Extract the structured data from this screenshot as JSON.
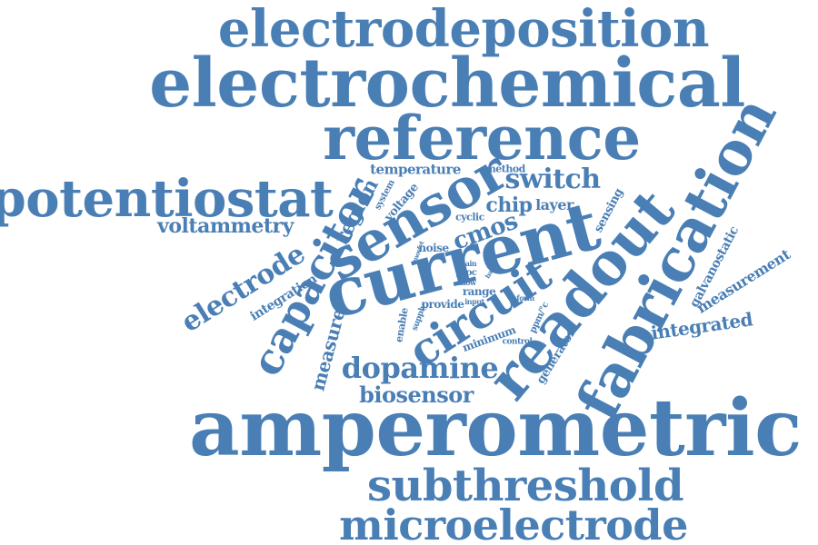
{
  "theme": {
    "word_color": "#4a7fb5",
    "background": "#ffffff"
  },
  "words": [
    "electrodeposition",
    "electrochemical",
    "reference",
    "potentiostat",
    "sensor",
    "current",
    "readout",
    "fabrication",
    "capacitor",
    "circuit",
    "amperometric",
    "subthreshold",
    "microelectrode",
    "dopamine",
    "biosensor",
    "electrode",
    "voltammetry",
    "switch",
    "cmos",
    "chip",
    "layer",
    "temperature",
    "method",
    "region",
    "system",
    "voltage",
    "cyclic",
    "sensing",
    "measure",
    "integration",
    "integrated",
    "measurement",
    "galvanostatic",
    "noise",
    "mosfet",
    "main",
    "proc",
    "allow",
    "basic",
    "form",
    "range",
    "input",
    "provide",
    "supply",
    "enable",
    "minimum",
    "ppm/°c",
    "control",
    "generator"
  ]
}
